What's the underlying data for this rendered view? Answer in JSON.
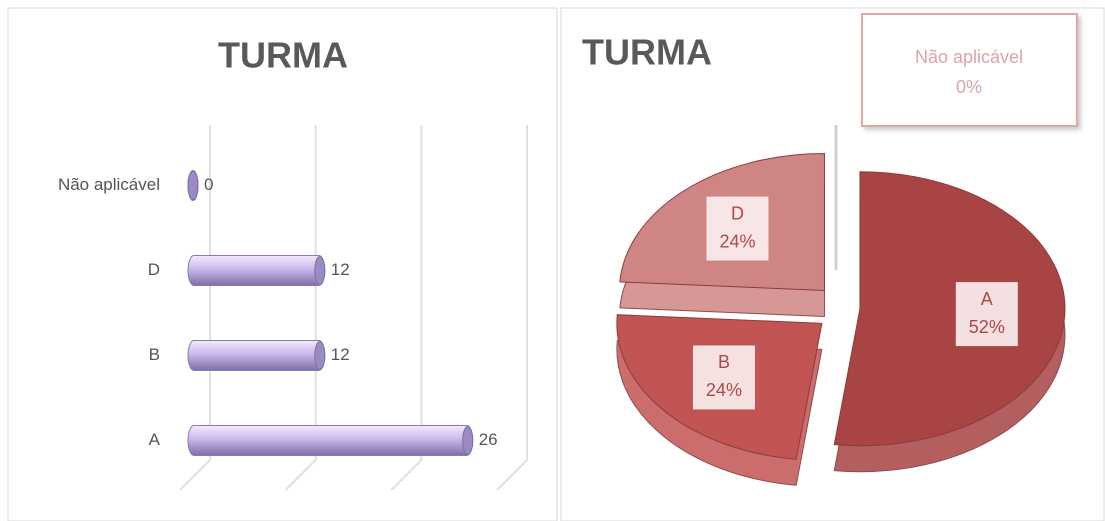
{
  "chart_data": [
    {
      "type": "bar",
      "orientation": "horizontal",
      "title": "TURMA",
      "categories": [
        "Não aplicável",
        "D",
        "B",
        "A"
      ],
      "values": [
        0,
        12,
        12,
        26
      ],
      "color": "#b9a6e0",
      "xlim": [
        0,
        30
      ],
      "xticks": [
        0,
        10,
        20,
        30
      ],
      "grid": true
    },
    {
      "type": "pie",
      "title": "TURMA",
      "categories": [
        "A",
        "B",
        "D",
        "Não aplicável"
      ],
      "values": [
        52,
        24,
        24,
        0
      ],
      "value_labels": [
        "52%",
        "24%",
        "24%",
        "0%"
      ],
      "colors": [
        "#a84444",
        "#c25454",
        "#d08585",
        "#e8b8b8"
      ]
    }
  ]
}
